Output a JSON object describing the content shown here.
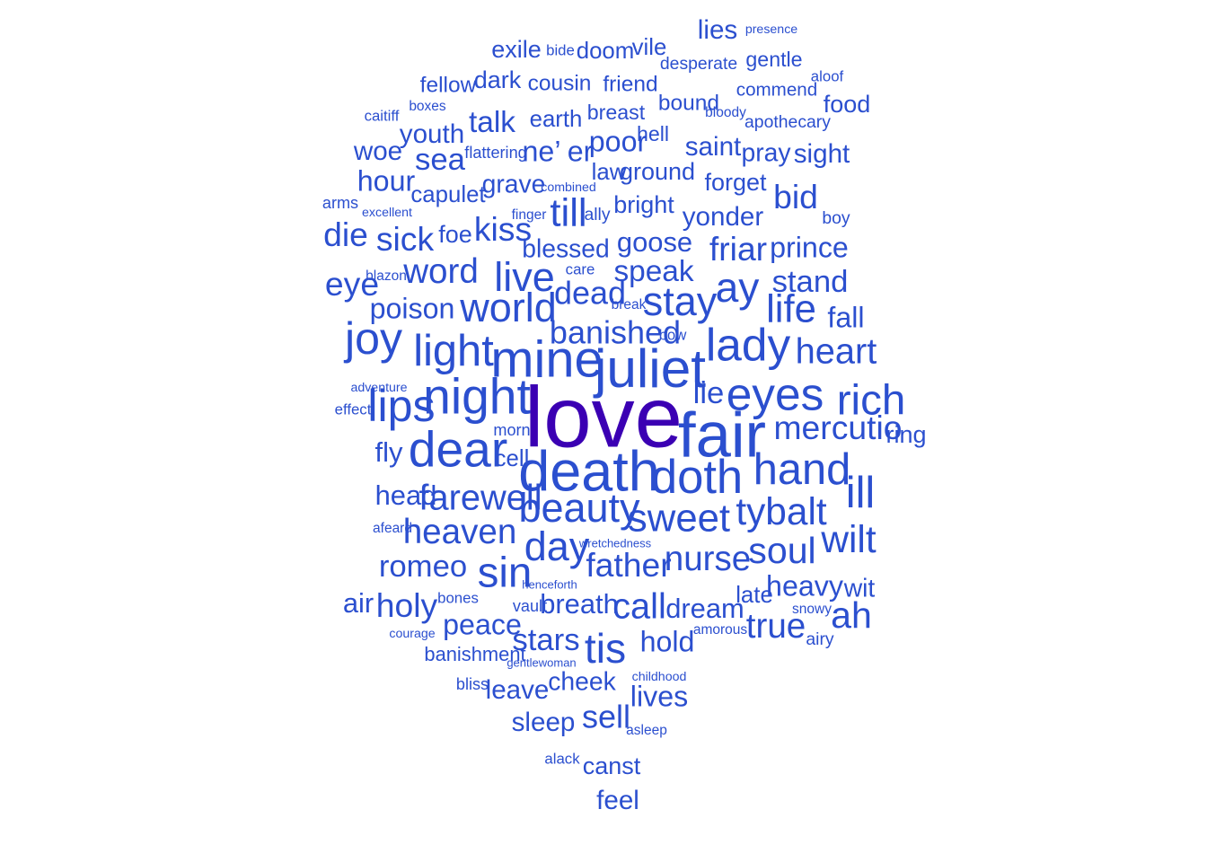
{
  "chart_data": {
    "type": "wordcloud",
    "colors": {
      "low": "#2b4fcf",
      "high": "#3b00b3"
    },
    "words": [
      {
        "text": "love",
        "weight": 100
      },
      {
        "text": "fair",
        "weight": 52
      },
      {
        "text": "death",
        "weight": 46
      },
      {
        "text": "juliet",
        "weight": 44
      },
      {
        "text": "mine",
        "weight": 42
      },
      {
        "text": "dear",
        "weight": 40
      },
      {
        "text": "night",
        "weight": 40
      },
      {
        "text": "doth",
        "weight": 38
      },
      {
        "text": "eyes",
        "weight": 37
      },
      {
        "text": "lady",
        "weight": 37
      },
      {
        "text": "lips",
        "weight": 36
      },
      {
        "text": "joy",
        "weight": 36
      },
      {
        "text": "hand",
        "weight": 35
      },
      {
        "text": "light",
        "weight": 35
      },
      {
        "text": "ill",
        "weight": 35
      },
      {
        "text": "rich",
        "weight": 34
      },
      {
        "text": "sin",
        "weight": 34
      },
      {
        "text": "tis",
        "weight": 33
      },
      {
        "text": "ay",
        "weight": 33
      },
      {
        "text": "beauty",
        "weight": 32
      },
      {
        "text": "day",
        "weight": 32
      },
      {
        "text": "world",
        "weight": 32
      },
      {
        "text": "stay",
        "weight": 32
      },
      {
        "text": "live",
        "weight": 32
      },
      {
        "text": "sweet",
        "weight": 31
      },
      {
        "text": "till",
        "weight": 31
      },
      {
        "text": "life",
        "weight": 31
      },
      {
        "text": "tybalt",
        "weight": 30
      },
      {
        "text": "wilt",
        "weight": 30
      },
      {
        "text": "soul",
        "weight": 29
      },
      {
        "text": "ah",
        "weight": 29
      },
      {
        "text": "farewell",
        "weight": 28
      },
      {
        "text": "heart",
        "weight": 28
      },
      {
        "text": "call",
        "weight": 28
      },
      {
        "text": "word",
        "weight": 27
      },
      {
        "text": "true",
        "weight": 27
      },
      {
        "text": "nurse",
        "weight": 27
      },
      {
        "text": "heaven",
        "weight": 27
      },
      {
        "text": "holy",
        "weight": 26
      },
      {
        "text": "father",
        "weight": 26
      },
      {
        "text": "sick",
        "weight": 26
      },
      {
        "text": "mercutio",
        "weight": 26
      },
      {
        "text": "dead",
        "weight": 25
      },
      {
        "text": "friar",
        "weight": 26
      },
      {
        "text": "banished",
        "weight": 25
      },
      {
        "text": "eye",
        "weight": 26
      },
      {
        "text": "kiss",
        "weight": 26
      },
      {
        "text": "bid",
        "weight": 26
      },
      {
        "text": "die",
        "weight": 26
      },
      {
        "text": "sell",
        "weight": 25
      },
      {
        "text": "romeo",
        "weight": 24
      },
      {
        "text": "stars",
        "weight": 24
      },
      {
        "text": "stand",
        "weight": 24
      },
      {
        "text": "speak",
        "weight": 23
      },
      {
        "text": "lie",
        "weight": 24
      },
      {
        "text": "talk",
        "weight": 23
      },
      {
        "text": "poison",
        "weight": 22
      },
      {
        "text": "sea",
        "weight": 24
      },
      {
        "text": "prince",
        "weight": 22
      },
      {
        "text": "lives",
        "weight": 22
      },
      {
        "text": "peace",
        "weight": 22
      },
      {
        "text": "heavy",
        "weight": 22
      },
      {
        "text": "hold",
        "weight": 22
      },
      {
        "text": "poor",
        "weight": 22
      },
      {
        "text": "hour",
        "weight": 22
      },
      {
        "text": "fall",
        "weight": 22
      },
      {
        "text": "ne’",
        "weight": 22
      },
      {
        "text": "er",
        "weight": 22
      },
      {
        "text": "goose",
        "weight": 21
      },
      {
        "text": "air",
        "weight": 21
      },
      {
        "text": "fly",
        "weight": 21
      },
      {
        "text": "yonder",
        "weight": 20
      },
      {
        "text": "head",
        "weight": 21
      },
      {
        "text": "dream",
        "weight": 21
      },
      {
        "text": "breath",
        "weight": 21
      },
      {
        "text": "sleep",
        "weight": 20
      },
      {
        "text": "leave",
        "weight": 20
      },
      {
        "text": "blessed",
        "weight": 19
      },
      {
        "text": "youth",
        "weight": 20
      },
      {
        "text": "woe",
        "weight": 20
      },
      {
        "text": "saint",
        "weight": 20
      },
      {
        "text": "sight",
        "weight": 20
      },
      {
        "text": "cheek",
        "weight": 19
      },
      {
        "text": "wit",
        "weight": 19
      },
      {
        "text": "ring",
        "weight": 18
      },
      {
        "text": "canst",
        "weight": 18
      },
      {
        "text": "feel",
        "weight": 20
      },
      {
        "text": "grave",
        "weight": 19
      },
      {
        "text": "lies",
        "weight": 20
      },
      {
        "text": "pray",
        "weight": 19
      },
      {
        "text": "forget",
        "weight": 18
      },
      {
        "text": "bright",
        "weight": 18
      },
      {
        "text": "ground",
        "weight": 18
      },
      {
        "text": "foe",
        "weight": 18
      },
      {
        "text": "capulet",
        "weight": 17
      },
      {
        "text": "late",
        "weight": 17
      },
      {
        "text": "exile",
        "weight": 18
      },
      {
        "text": "food",
        "weight": 18
      },
      {
        "text": "dark",
        "weight": 18
      },
      {
        "text": "earth",
        "weight": 17
      },
      {
        "text": "cell",
        "weight": 17
      },
      {
        "text": "law",
        "weight": 17
      },
      {
        "text": "doom",
        "weight": 17
      },
      {
        "text": "vile",
        "weight": 17
      },
      {
        "text": "cousin",
        "weight": 16
      },
      {
        "text": "friend",
        "weight": 16
      },
      {
        "text": "fellow",
        "weight": 16
      },
      {
        "text": "bound",
        "weight": 16
      },
      {
        "text": "breast",
        "weight": 15
      },
      {
        "text": "hell",
        "weight": 15
      },
      {
        "text": "gentle",
        "weight": 15
      },
      {
        "text": "banishment",
        "weight": 14
      },
      {
        "text": "commend",
        "weight": 13
      },
      {
        "text": "desperate",
        "weight": 12
      },
      {
        "text": "apothecary",
        "weight": 12
      },
      {
        "text": "airy",
        "weight": 12
      },
      {
        "text": "ally",
        "weight": 12
      },
      {
        "text": "boy",
        "weight": 12
      },
      {
        "text": "arms",
        "weight": 11
      },
      {
        "text": "bliss",
        "weight": 11
      },
      {
        "text": "flattering",
        "weight": 11
      },
      {
        "text": "morn",
        "weight": 11
      },
      {
        "text": "effect",
        "weight": 10
      },
      {
        "text": "vault",
        "weight": 11
      },
      {
        "text": "bones",
        "weight": 10
      },
      {
        "text": "bow",
        "weight": 10
      },
      {
        "text": "care",
        "weight": 10
      },
      {
        "text": "bide",
        "weight": 10
      },
      {
        "text": "aloof",
        "weight": 10
      },
      {
        "text": "caitiff",
        "weight": 10
      },
      {
        "text": "boxes",
        "weight": 9
      },
      {
        "text": "bloody",
        "weight": 9
      },
      {
        "text": "finger",
        "weight": 9
      },
      {
        "text": "blazon",
        "weight": 9
      },
      {
        "text": "break",
        "weight": 9
      },
      {
        "text": "afeard",
        "weight": 9
      },
      {
        "text": "amorous",
        "weight": 9
      },
      {
        "text": "snowy",
        "weight": 9
      },
      {
        "text": "courage",
        "weight": 8
      },
      {
        "text": "asleep",
        "weight": 9
      },
      {
        "text": "alack",
        "weight": 10
      },
      {
        "text": "childhood",
        "weight": 8
      },
      {
        "text": "presence",
        "weight": 8
      },
      {
        "text": "excellent",
        "weight": 8
      },
      {
        "text": "combined",
        "weight": 8
      },
      {
        "text": "adventure",
        "weight": 8
      },
      {
        "text": "henceforth",
        "weight": 7
      },
      {
        "text": "wretchedness",
        "weight": 7
      },
      {
        "text": "gentlewoman",
        "weight": 7
      }
    ]
  }
}
